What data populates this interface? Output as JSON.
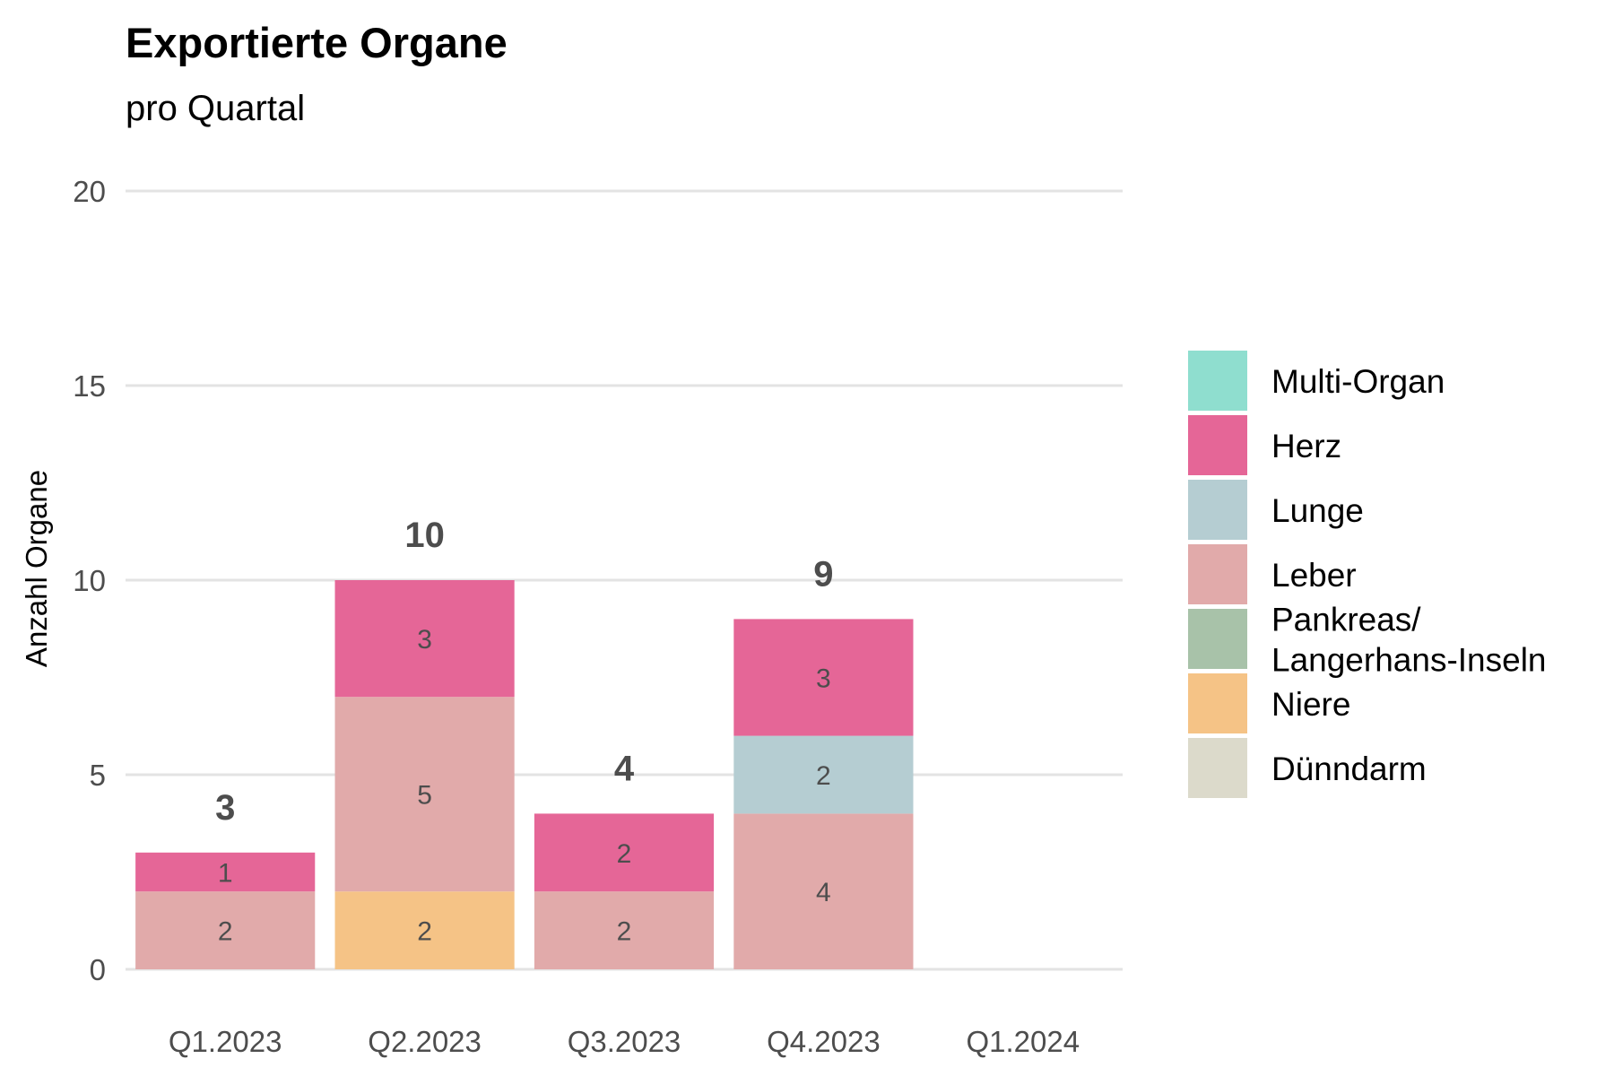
{
  "chart_data": {
    "type": "bar",
    "stacked": true,
    "title": "Exportierte Organe",
    "subtitle": "pro Quartal",
    "xlabel": "",
    "ylabel": "Anzahl Organe",
    "ylim": [
      0,
      20
    ],
    "yticks": [
      "0",
      "5",
      "10",
      "15",
      "20"
    ],
    "grid": true,
    "legend_position": "right",
    "categories": [
      "Q1.2023",
      "Q2.2023",
      "Q3.2023",
      "Q4.2023",
      "Q1.2024"
    ],
    "totals": [
      "3",
      "10",
      "4",
      "9",
      ""
    ],
    "series": [
      {
        "name": "Niere",
        "color": "#F5C386",
        "values": [
          0,
          2,
          0,
          0,
          0
        ]
      },
      {
        "name": "Leber",
        "color": "#E1AAAA",
        "values": [
          2,
          5,
          2,
          4,
          0
        ]
      },
      {
        "name": "Lunge",
        "color": "#B5CDD2",
        "values": [
          0,
          0,
          0,
          2,
          0
        ]
      },
      {
        "name": "Herz",
        "color": "#E56697",
        "values": [
          1,
          3,
          2,
          3,
          0
        ]
      }
    ],
    "legend": [
      {
        "label": "Multi-Organ",
        "color": "#8FDECF"
      },
      {
        "label": "Herz",
        "color": "#E56697"
      },
      {
        "label": "Lunge",
        "color": "#B5CDD2"
      },
      {
        "label": "Leber",
        "color": "#E1AAAA"
      },
      {
        "label": "Pankreas/ Langerhans-Inseln",
        "color": "#A8C2A9"
      },
      {
        "label": "Niere",
        "color": "#F5C386"
      },
      {
        "label": "Dünndarm",
        "color": "#DCDACB"
      }
    ]
  }
}
